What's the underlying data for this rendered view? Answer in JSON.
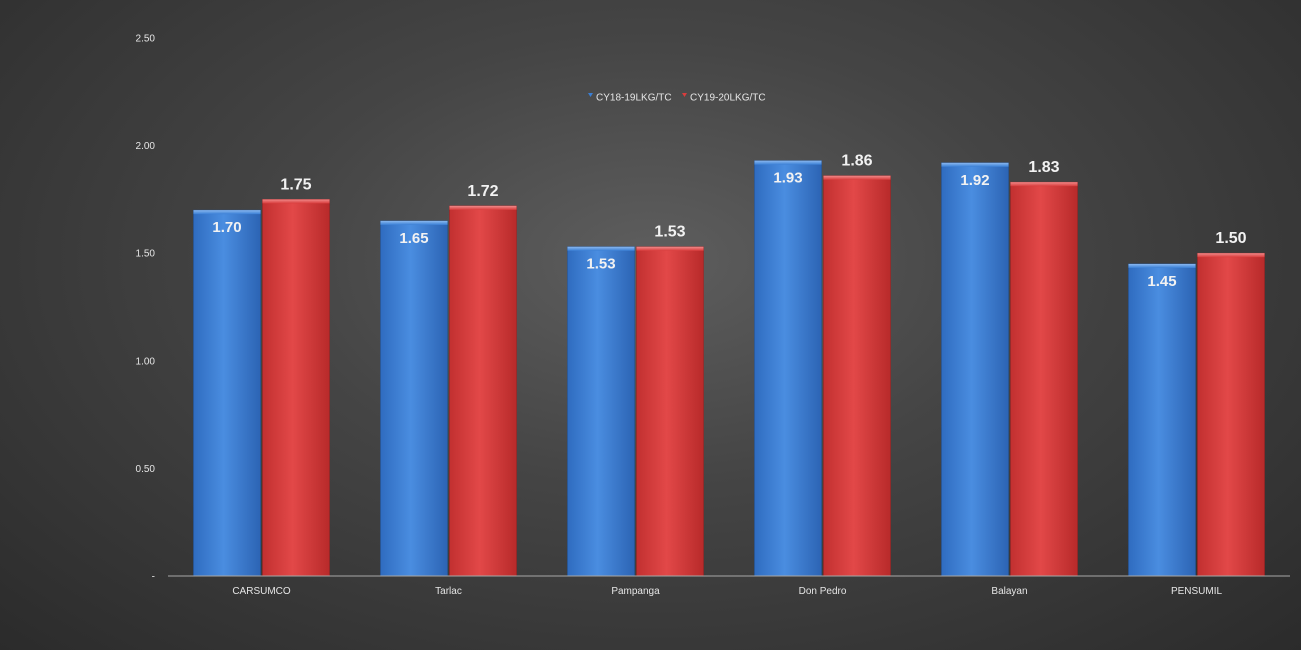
{
  "chart_data": {
    "type": "bar",
    "categories": [
      "CARSUMCO",
      "Tarlac",
      "Pampanga",
      "Don Pedro",
      "Balayan",
      "PENSUMIL"
    ],
    "series": [
      {
        "name": "CY18-19LKG/TC",
        "color": "#3a7fd5",
        "values": [
          1.7,
          1.65,
          1.53,
          1.93,
          1.92,
          1.45
        ],
        "labels": [
          "1.70",
          "1.65",
          "1.53",
          "1.93",
          "1.92",
          "1.45"
        ],
        "label_position": "inside-end"
      },
      {
        "name": "CY19-20LKG/TC",
        "color": "#d93c3c",
        "values": [
          1.75,
          1.72,
          1.53,
          1.86,
          1.83,
          1.5
        ],
        "labels": [
          "1.75",
          "1.72",
          "1.53",
          "1.86",
          "1.83",
          "1.50"
        ],
        "label_position": "outside-end"
      }
    ],
    "title": "",
    "xlabel": "",
    "ylabel": "",
    "ylim": [
      0,
      2.5
    ],
    "yticks": [
      0,
      0.5,
      1.0,
      1.5,
      2.0,
      2.5
    ],
    "ytick_labels": [
      "-",
      "0.50",
      "1.00",
      "1.50",
      "2.00",
      "2.50"
    ],
    "grid": false,
    "legend_position": "top-center"
  }
}
